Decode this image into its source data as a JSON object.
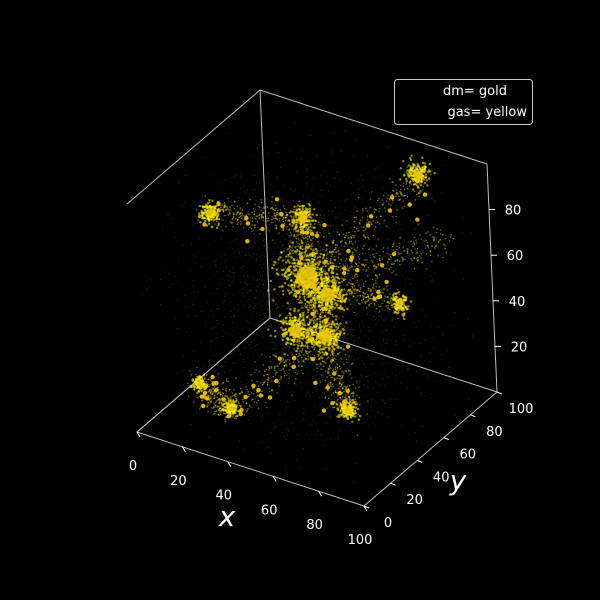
{
  "chart_data": {
    "type": "scatter",
    "projection": "3d",
    "background": "#000000",
    "xlabel": "x",
    "ylabel": "y",
    "zlabel": "",
    "xlim": [
      0,
      100
    ],
    "ylim": [
      0,
      100
    ],
    "zlim": [
      0,
      100
    ],
    "x_ticks": [
      0,
      20,
      40,
      60,
      80,
      100
    ],
    "y_ticks": [
      0,
      20,
      40,
      60,
      80,
      100
    ],
    "z_ticks": [
      20,
      40,
      60,
      80
    ],
    "grid": false,
    "legend": {
      "placement": "top-right",
      "entries": [
        "dm= gold",
        "gas= yellow"
      ]
    },
    "series": [
      {
        "name": "dm= gold",
        "color": "#FFD700"
      },
      {
        "name": "gas= yellow",
        "color": "#FFFF00"
      }
    ],
    "clusters": [
      {
        "x": 45,
        "y": 55,
        "z": 55,
        "size": 12,
        "weight": 1.0
      },
      {
        "x": 52,
        "y": 58,
        "z": 48,
        "size": 8,
        "weight": 0.7
      },
      {
        "x": 55,
        "y": 50,
        "z": 35,
        "size": 7,
        "weight": 0.8
      },
      {
        "x": 35,
        "y": 70,
        "z": 70,
        "size": 5,
        "weight": 0.4
      },
      {
        "x": 75,
        "y": 90,
        "z": 92,
        "size": 5,
        "weight": 0.5
      },
      {
        "x": 12,
        "y": 40,
        "z": 80,
        "size": 4,
        "weight": 0.4
      },
      {
        "x": 70,
        "y": 40,
        "z": 12,
        "size": 4,
        "weight": 0.4
      },
      {
        "x": 48,
        "y": 40,
        "z": 40,
        "size": 7,
        "weight": 0.6
      },
      {
        "x": 20,
        "y": 15,
        "z": 20,
        "size": 3,
        "weight": 0.3
      },
      {
        "x": 30,
        "y": 20,
        "z": 10,
        "size": 3,
        "weight": 0.3
      },
      {
        "x": 80,
        "y": 65,
        "z": 50,
        "size": 4,
        "weight": 0.3
      }
    ],
    "filaments": [
      {
        "from": [
          45,
          55,
          55
        ],
        "to": [
          75,
          90,
          92
        ]
      },
      {
        "from": [
          45,
          55,
          55
        ],
        "to": [
          35,
          70,
          70
        ]
      },
      {
        "from": [
          35,
          70,
          70
        ],
        "to": [
          12,
          40,
          80
        ]
      },
      {
        "from": [
          45,
          55,
          55
        ],
        "to": [
          55,
          50,
          35
        ]
      },
      {
        "from": [
          55,
          50,
          35
        ],
        "to": [
          70,
          40,
          12
        ]
      },
      {
        "from": [
          45,
          55,
          55
        ],
        "to": [
          80,
          65,
          50
        ]
      },
      {
        "from": [
          55,
          50,
          35
        ],
        "to": [
          30,
          20,
          10
        ]
      },
      {
        "from": [
          30,
          20,
          10
        ],
        "to": [
          20,
          15,
          20
        ]
      },
      {
        "from": [
          45,
          55,
          55
        ],
        "to": [
          90,
          85,
          70
        ]
      }
    ]
  }
}
